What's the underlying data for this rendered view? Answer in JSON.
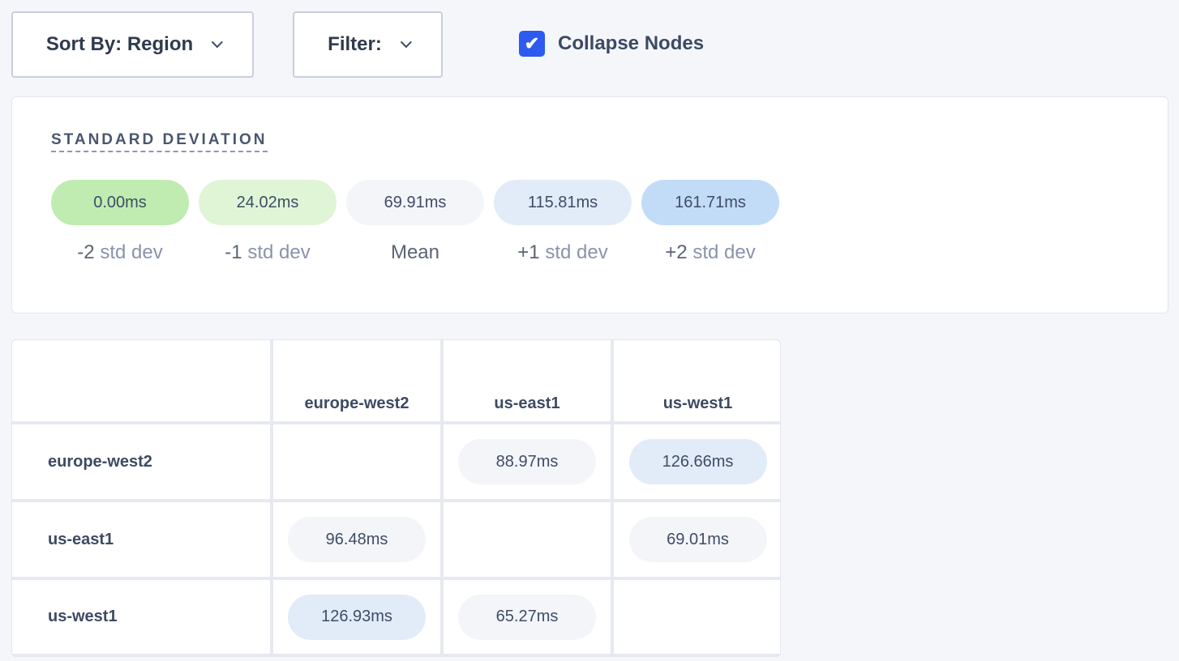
{
  "toolbar": {
    "sort_label": "Sort By: Region",
    "filter_label": "Filter:",
    "collapse_label": "Collapse Nodes",
    "collapse_checked": true
  },
  "legend": {
    "title": "STANDARD DEVIATION",
    "items": [
      {
        "value": "0.00ms",
        "prefix": "-2",
        "suffix": "std dev",
        "color": "#c0ecb1"
      },
      {
        "value": "24.02ms",
        "prefix": "-1",
        "suffix": "std dev",
        "color": "#dff5d6"
      },
      {
        "value": "69.91ms",
        "prefix": "Mean",
        "suffix": "",
        "color": "#f3f5f9"
      },
      {
        "value": "115.81ms",
        "prefix": "+1",
        "suffix": "std dev",
        "color": "#e2ecf8"
      },
      {
        "value": "161.71ms",
        "prefix": "+2",
        "suffix": "std dev",
        "color": "#c2dcf8"
      }
    ]
  },
  "matrix": {
    "columns": [
      "europe-west2",
      "us-east1",
      "us-west1"
    ],
    "rows": [
      {
        "label": "europe-west2",
        "cells": [
          null,
          {
            "value": "88.97ms",
            "color": "#f3f5f9"
          },
          {
            "value": "126.66ms",
            "color": "#e2ecf8"
          }
        ]
      },
      {
        "label": "us-east1",
        "cells": [
          {
            "value": "96.48ms",
            "color": "#f3f5f9"
          },
          null,
          {
            "value": "69.01ms",
            "color": "#f3f5f9"
          }
        ]
      },
      {
        "label": "us-west1",
        "cells": [
          {
            "value": "126.93ms",
            "color": "#e2ecf8"
          },
          {
            "value": "65.27ms",
            "color": "#f3f5f9"
          },
          null
        ]
      }
    ]
  }
}
